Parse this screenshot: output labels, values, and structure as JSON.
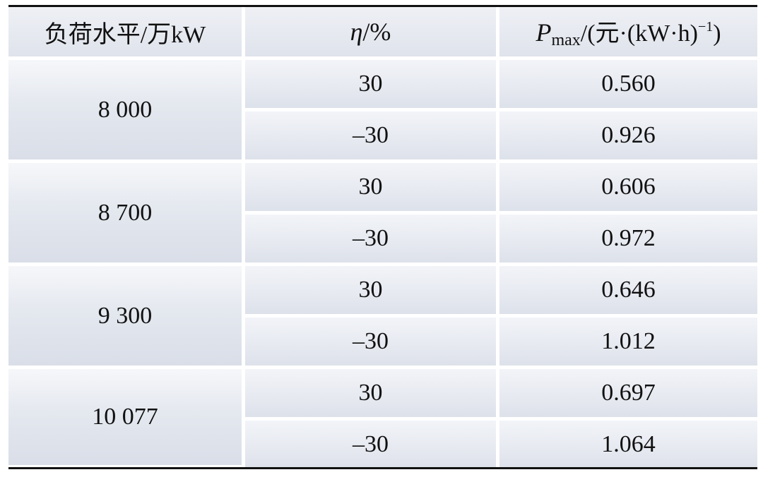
{
  "table": {
    "header": {
      "load_label": "负荷水平/万kW",
      "eta_symbol": "η",
      "eta_unit": "/%",
      "p_symbol": "P",
      "p_subscript": "max",
      "p_unit_prefix": "/(元·(kW·h)",
      "p_superscript": "−1",
      "p_unit_suffix": ")"
    },
    "groups": [
      {
        "load": "8 000",
        "rows": [
          {
            "eta": "30",
            "pmax": "0.560"
          },
          {
            "eta": "–30",
            "pmax": "0.926"
          }
        ]
      },
      {
        "load": "8 700",
        "rows": [
          {
            "eta": "30",
            "pmax": "0.606"
          },
          {
            "eta": "–30",
            "pmax": "0.972"
          }
        ]
      },
      {
        "load": "9 300",
        "rows": [
          {
            "eta": "30",
            "pmax": "0.646"
          },
          {
            "eta": "–30",
            "pmax": "1.012"
          }
        ]
      },
      {
        "load": "10 077",
        "rows": [
          {
            "eta": "30",
            "pmax": "0.697"
          },
          {
            "eta": "–30",
            "pmax": "1.064"
          }
        ]
      }
    ]
  },
  "colors": {
    "rule": "#111111",
    "cell_light": "#eef0f5",
    "cell_dark": "#dde1ea"
  }
}
